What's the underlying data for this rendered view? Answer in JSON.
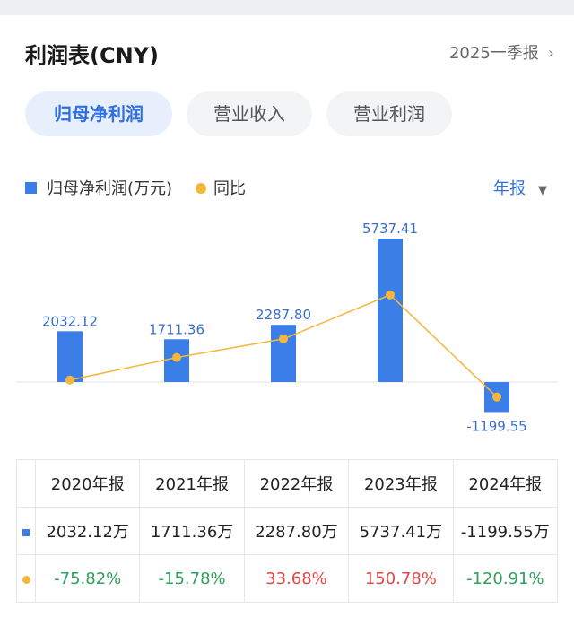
{
  "header": {
    "title": "利润表(CNY)",
    "period": "2025一季报",
    "period_chevron": "›"
  },
  "tabs": [
    {
      "label": "归母净利润",
      "active": true
    },
    {
      "label": "营业收入",
      "active": false
    },
    {
      "label": "营业利润",
      "active": false
    }
  ],
  "legend": {
    "bar_label": "归母净利润(万元)",
    "line_label": "同比"
  },
  "year_selector": {
    "label": "年报",
    "caret": "▼"
  },
  "colors": {
    "bar": "#3b7ee8",
    "line": "#f5b63c",
    "positive": "#e04848",
    "negative": "#2fa05a",
    "active_tab": "#2f6fe4"
  },
  "chart_data": {
    "type": "bar",
    "categories": [
      "2020年报",
      "2021年报",
      "2022年报",
      "2023年报",
      "2024年报"
    ],
    "series": [
      {
        "name": "归母净利润(万元)",
        "type": "bar",
        "values": [
          2032.12,
          1711.36,
          2287.8,
          5737.41,
          -1199.55
        ]
      },
      {
        "name": "同比",
        "type": "line",
        "values": [
          -75.82,
          -15.78,
          33.68,
          150.78,
          -120.91
        ]
      }
    ],
    "bar_value_labels": [
      "2032.12",
      "1711.36",
      "2287.80",
      "5737.41",
      "-1199.55"
    ],
    "legend_position": "top-left",
    "grid": false
  },
  "table": {
    "headers": [
      "2020年报",
      "2021年报",
      "2022年报",
      "2023年报",
      "2024年报"
    ],
    "values": [
      "2032.12万",
      "1711.36万",
      "2287.80万",
      "5737.41万",
      "-1199.55万"
    ],
    "yoy": [
      "-75.82%",
      "-15.78%",
      "33.68%",
      "150.78%",
      "-120.91%"
    ]
  }
}
